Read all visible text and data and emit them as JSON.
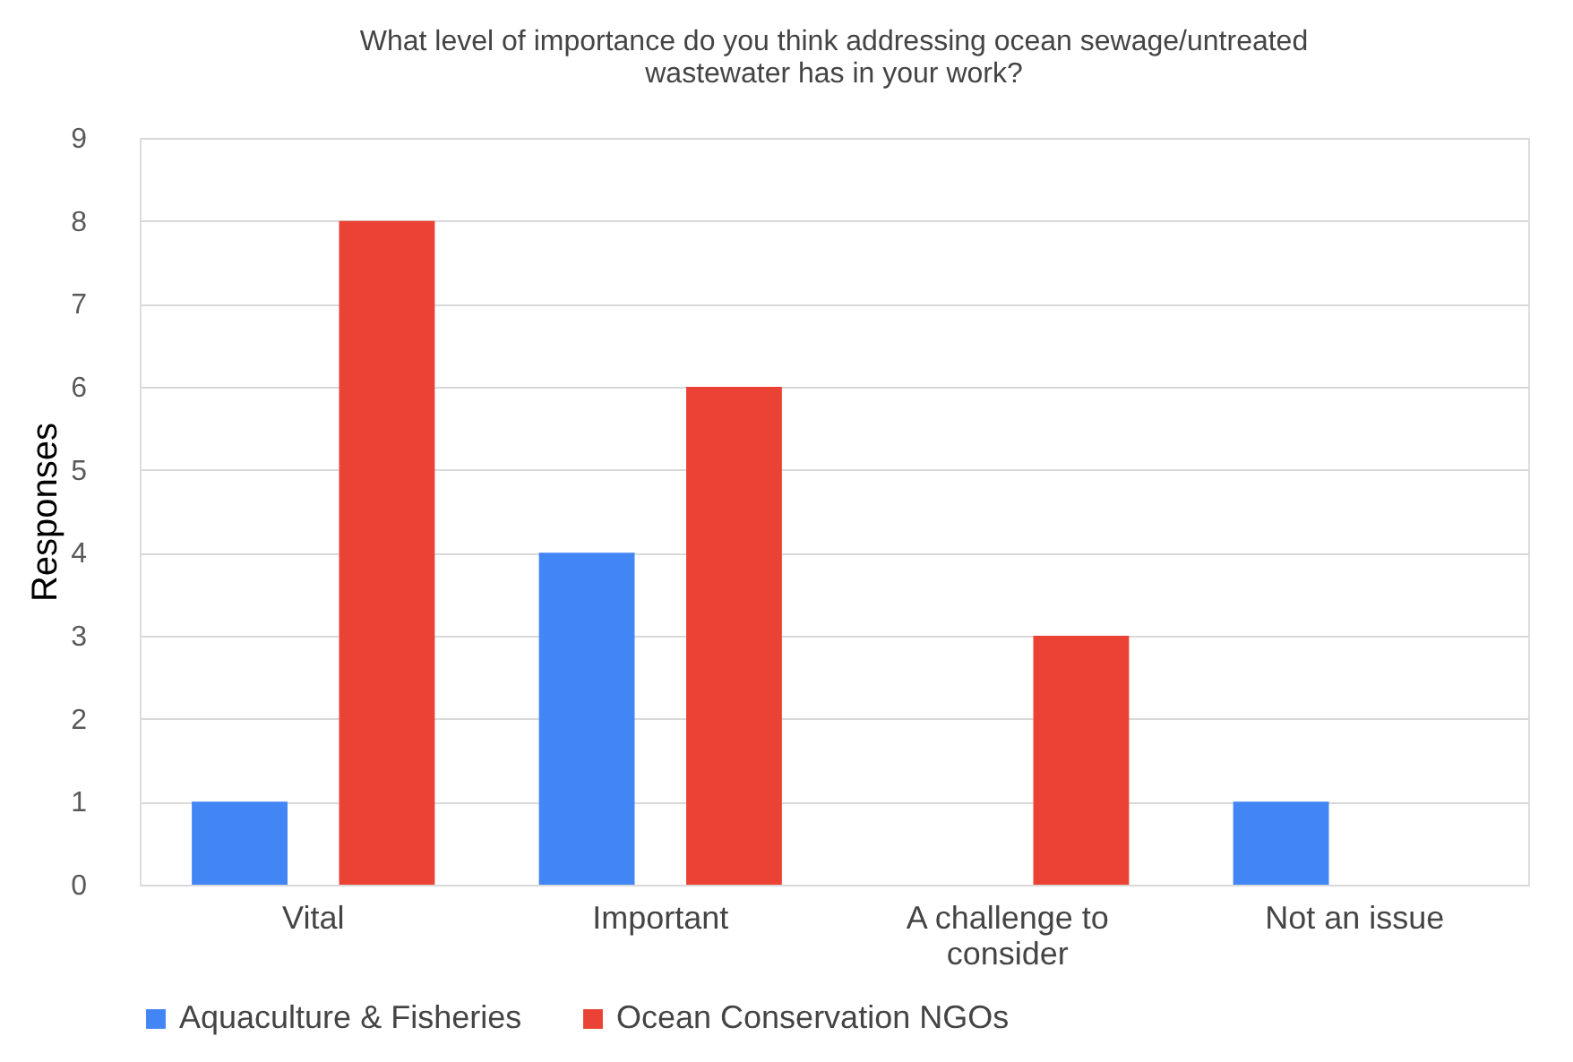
{
  "chart_data": {
    "type": "bar",
    "title": "What level of importance do you think addressing ocean sewage/untreated wastewater  has in your work?",
    "ylabel": "Responses",
    "categories": [
      "Vital",
      "Important",
      "A challenge to consider",
      "Not an issue"
    ],
    "series": [
      {
        "name": "Aquaculture & Fisheries",
        "color": "#4285f4",
        "values": [
          1,
          4,
          0,
          1
        ]
      },
      {
        "name": "Ocean Conservation NGOs",
        "color": "#ea4335",
        "values": [
          8,
          6,
          3,
          0
        ]
      }
    ],
    "ylim": [
      0,
      9
    ],
    "yticks": [
      0,
      1,
      2,
      3,
      4,
      5,
      6,
      7,
      8,
      9
    ],
    "grid": "y",
    "legend": "bottom"
  }
}
